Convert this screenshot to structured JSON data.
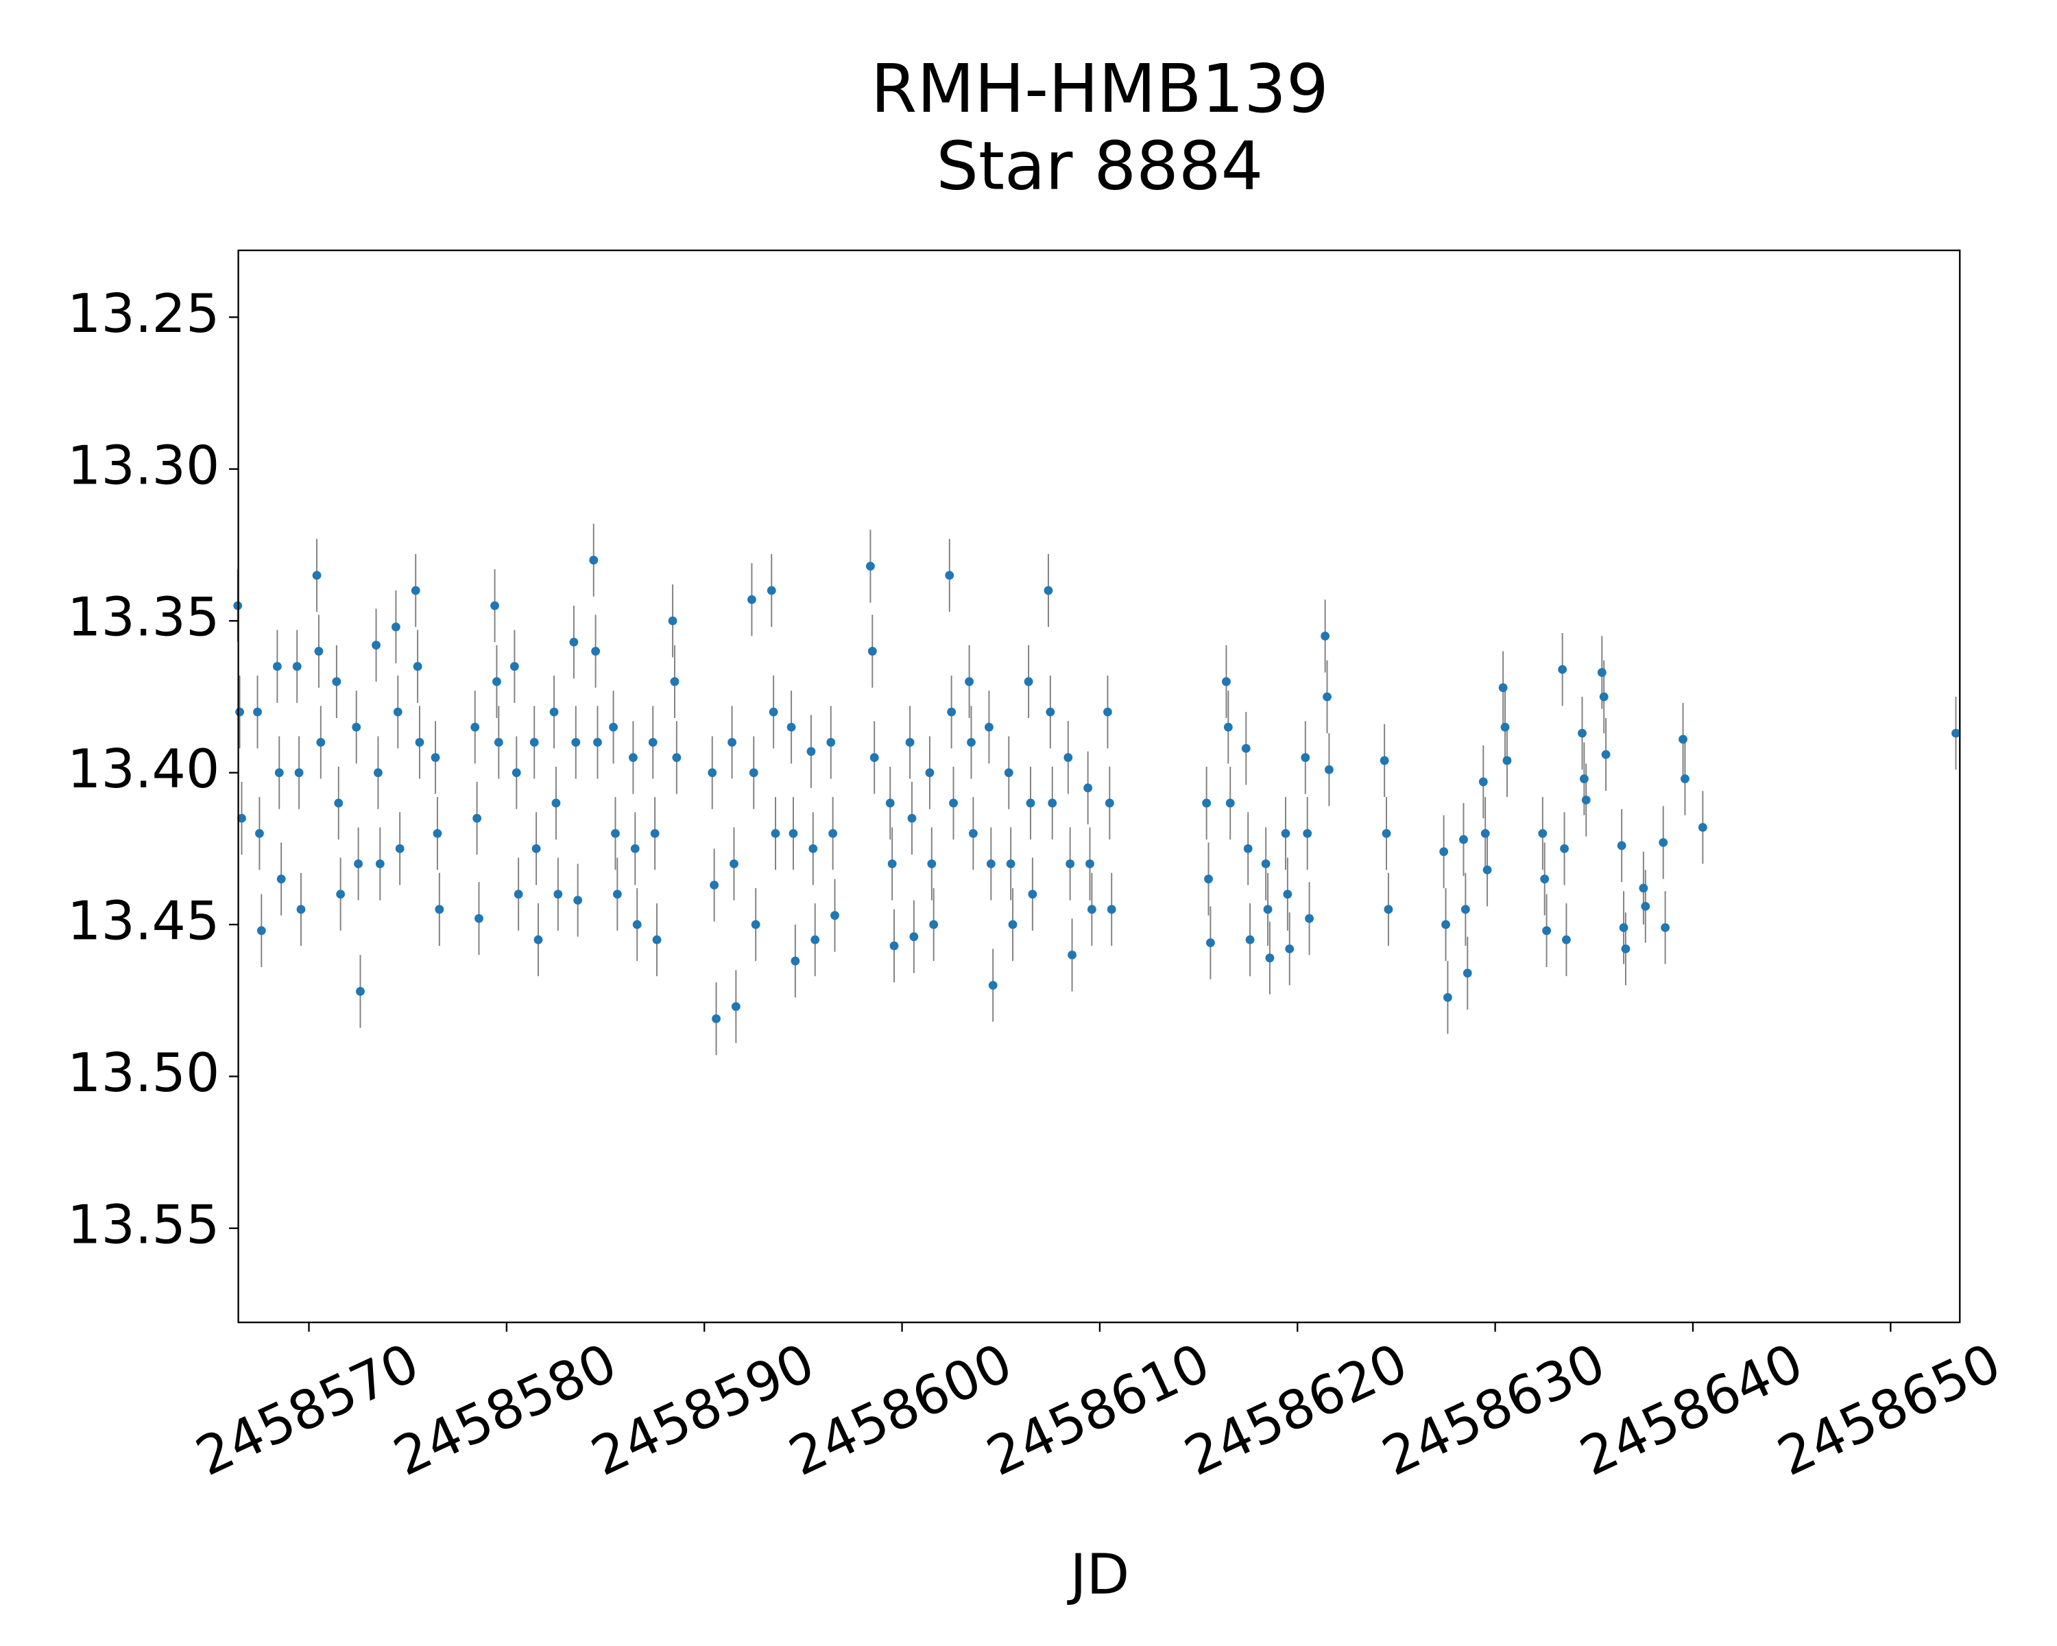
{
  "chart_data": {
    "type": "errorbar",
    "title": "RMH-HMB139",
    "subtitle": "Star 8884",
    "xlabel": "JD",
    "color": "#1f77b4",
    "errorbar_color": "#808080",
    "invert_y": true,
    "xlim": [
      2458566.43,
      2458653.5
    ],
    "xticks": [
      2458570,
      2458580,
      2458590,
      2458600,
      2458610,
      2458620,
      2458630,
      2458640,
      2458650
    ],
    "ylim": [
      13.228,
      13.581
    ],
    "yticks": [
      13.25,
      {
        "value": 13.3,
        "label": "13.30"
      },
      13.35,
      {
        "value": 13.4,
        "label": "13.40"
      },
      13.45,
      {
        "value": 13.5,
        "label": "13.50"
      },
      13.55
    ],
    "yerr": 0.012,
    "x": [
      2458566.4,
      2458566.5,
      2458566.6,
      2458567.4,
      2458567.5,
      2458567.6,
      2458568.4,
      2458568.5,
      2458568.6,
      2458569.4,
      2458569.5,
      2458569.6,
      2458570.4,
      2458570.5,
      2458570.6,
      2458571.4,
      2458571.5,
      2458571.6,
      2458572.4,
      2458572.5,
      2458572.6,
      2458573.4,
      2458573.5,
      2458573.6,
      2458574.4,
      2458574.5,
      2458574.6,
      2458575.4,
      2458575.5,
      2458575.6,
      2458576.4,
      2458576.5,
      2458576.6,
      2458578.4,
      2458578.5,
      2458578.6,
      2458579.4,
      2458579.5,
      2458579.6,
      2458580.4,
      2458580.5,
      2458580.6,
      2458581.4,
      2458581.5,
      2458581.6,
      2458582.4,
      2458582.5,
      2458582.6,
      2458583.4,
      2458583.5,
      2458583.6,
      2458584.4,
      2458584.5,
      2458584.6,
      2458585.4,
      2458585.5,
      2458585.6,
      2458586.4,
      2458586.5,
      2458586.6,
      2458587.4,
      2458587.5,
      2458587.6,
      2458588.4,
      2458588.5,
      2458588.6,
      2458590.4,
      2458590.5,
      2458590.6,
      2458591.4,
      2458591.5,
      2458591.6,
      2458592.4,
      2458592.5,
      2458592.6,
      2458593.4,
      2458593.5,
      2458593.6,
      2458594.4,
      2458594.5,
      2458594.6,
      2458595.4,
      2458595.5,
      2458595.6,
      2458596.4,
      2458596.5,
      2458596.6,
      2458598.4,
      2458598.5,
      2458598.6,
      2458599.4,
      2458599.5,
      2458599.6,
      2458600.4,
      2458600.5,
      2458600.6,
      2458601.4,
      2458601.5,
      2458601.6,
      2458602.4,
      2458602.5,
      2458602.6,
      2458603.4,
      2458603.5,
      2458603.6,
      2458604.4,
      2458604.5,
      2458604.6,
      2458605.4,
      2458605.5,
      2458605.6,
      2458606.4,
      2458606.5,
      2458606.6,
      2458607.4,
      2458607.5,
      2458607.6,
      2458608.4,
      2458608.5,
      2458608.6,
      2458609.4,
      2458609.5,
      2458609.6,
      2458610.4,
      2458610.5,
      2458610.6,
      2458615.4,
      2458615.5,
      2458615.6,
      2458616.4,
      2458616.5,
      2458616.6,
      2458617.4,
      2458617.5,
      2458617.6,
      2458618.4,
      2458618.5,
      2458618.6,
      2458619.4,
      2458619.5,
      2458619.6,
      2458620.4,
      2458620.5,
      2458620.6,
      2458621.4,
      2458621.5,
      2458621.6,
      2458624.4,
      2458624.5,
      2458624.6,
      2458627.4,
      2458627.5,
      2458627.6,
      2458628.4,
      2458628.5,
      2458628.6,
      2458629.4,
      2458629.5,
      2458629.6,
      2458630.4,
      2458630.5,
      2458630.6,
      2458632.4,
      2458632.5,
      2458632.6,
      2458633.4,
      2458633.5,
      2458633.6,
      2458634.4,
      2458634.5,
      2458634.6,
      2458635.4,
      2458635.5,
      2458635.6,
      2458636.4,
      2458636.5,
      2458636.6,
      2458637.5,
      2458637.6,
      2458638.5,
      2458638.6,
      2458639.5,
      2458639.6,
      2458640.5,
      2458653.3
    ],
    "values": [
      13.345,
      13.38,
      13.415,
      13.38,
      13.42,
      13.452,
      13.365,
      13.4,
      13.435,
      13.365,
      13.4,
      13.445,
      13.335,
      13.36,
      13.39,
      13.37,
      13.41,
      13.44,
      13.385,
      13.43,
      13.472,
      13.358,
      13.4,
      13.43,
      13.352,
      13.38,
      13.425,
      13.34,
      13.365,
      13.39,
      13.395,
      13.42,
      13.445,
      13.385,
      13.415,
      13.448,
      13.345,
      13.37,
      13.39,
      13.365,
      13.4,
      13.44,
      13.39,
      13.425,
      13.455,
      13.38,
      13.41,
      13.44,
      13.357,
      13.39,
      13.442,
      13.33,
      13.36,
      13.39,
      13.385,
      13.42,
      13.44,
      13.395,
      13.425,
      13.45,
      13.39,
      13.42,
      13.455,
      13.35,
      13.37,
      13.395,
      13.4,
      13.437,
      13.481,
      13.39,
      13.43,
      13.477,
      13.343,
      13.4,
      13.45,
      13.34,
      13.38,
      13.42,
      13.385,
      13.42,
      13.462,
      13.393,
      13.425,
      13.455,
      13.39,
      13.42,
      13.447,
      13.332,
      13.36,
      13.395,
      13.41,
      13.43,
      13.457,
      13.39,
      13.415,
      13.454,
      13.4,
      13.43,
      13.45,
      13.335,
      13.38,
      13.41,
      13.37,
      13.39,
      13.42,
      13.385,
      13.43,
      13.47,
      13.4,
      13.43,
      13.45,
      13.37,
      13.41,
      13.44,
      13.34,
      13.38,
      13.41,
      13.395,
      13.43,
      13.46,
      13.405,
      13.43,
      13.445,
      13.38,
      13.41,
      13.445,
      13.41,
      13.435,
      13.456,
      13.37,
      13.385,
      13.41,
      13.392,
      13.425,
      13.455,
      13.43,
      13.445,
      13.461,
      13.42,
      13.44,
      13.458,
      13.395,
      13.42,
      13.448,
      13.355,
      13.375,
      13.399,
      13.396,
      13.42,
      13.445,
      13.426,
      13.45,
      13.474,
      13.422,
      13.445,
      13.466,
      13.403,
      13.42,
      13.432,
      13.372,
      13.385,
      13.396,
      13.42,
      13.435,
      13.452,
      13.366,
      13.425,
      13.455,
      13.387,
      13.402,
      13.409,
      13.367,
      13.375,
      13.394,
      13.424,
      13.451,
      13.458,
      13.438,
      13.444,
      13.423,
      13.451,
      13.389,
      13.402,
      13.418,
      13.387
    ]
  }
}
